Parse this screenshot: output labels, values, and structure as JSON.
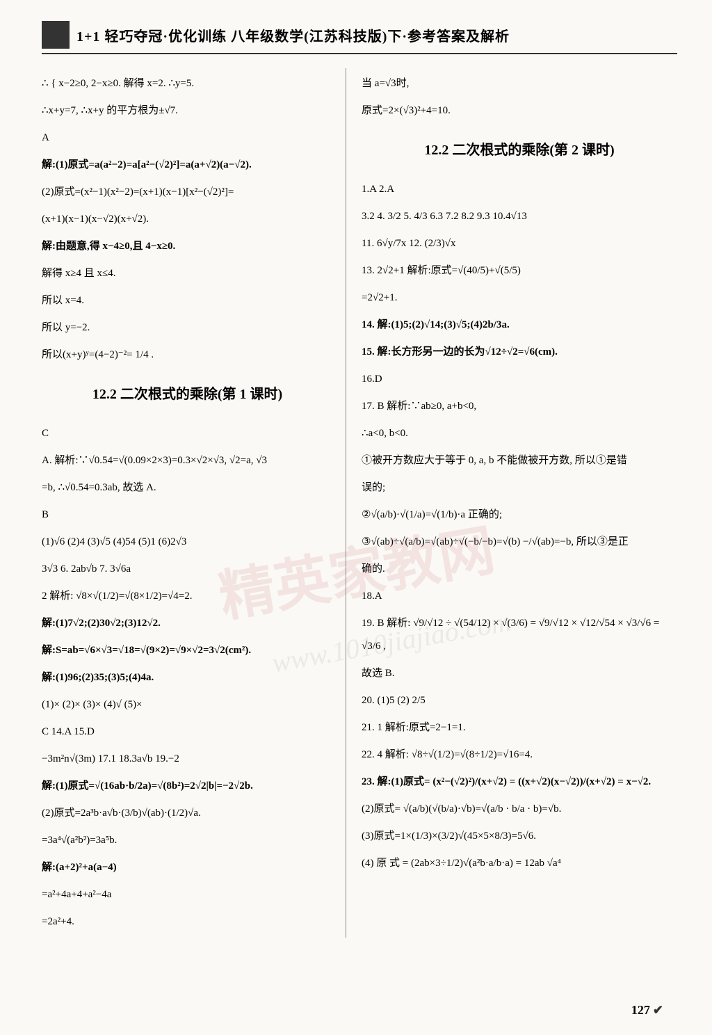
{
  "header": {
    "title": "1+1 轻巧夺冠·优化训练 八年级数学(江苏科技版)下·参考答案及解析"
  },
  "leftCol": {
    "l1": "∴ { x−2≥0, 2−x≥0. 解得 x=2. ∴y=5.",
    "l2": "∴x+y=7, ∴x+y 的平方根为±√7.",
    "l3": "A",
    "l4": "解:(1)原式=a(a²−2)=a[a²−(√2)²]=a(a+√2)(a−√2).",
    "l5": "(2)原式=(x²−1)(x²−2)=(x+1)(x−1)[x²−(√2)²]=",
    "l6": "(x+1)(x−1)(x−√2)(x+√2).",
    "l7": "解:由题意,得 x−4≥0,且 4−x≥0.",
    "l8": "解得 x≥4 且 x≤4.",
    "l9": "所以 x=4.",
    "l10": "所以 y=−2.",
    "l11": "所以(x+y)ʸ=(4−2)⁻²= 1/4 .",
    "sec1": "12.2  二次根式的乘除(第 1 课时)",
    "l12": "C",
    "l13": "A. 解析:∵√0.54=√(0.09×2×3)=0.3×√2×√3, √2=a, √3",
    "l14": "=b, ∴√0.54=0.3ab, 故选 A.",
    "l15": "B",
    "l16": "(1)√6  (2)4  (3)√5  (4)54  (5)1  (6)2√3",
    "l17": "3√3  6. 2ab√b  7. 3√6a",
    "l18": "2  解析: √8×√(1/2)=√(8×1/2)=√4=2.",
    "l19": "解:(1)7√2;(2)30√2;(3)12√2.",
    "l20": "解:S=ab=√6×√3=√18=√(9×2)=√9×√2=3√2(cm²).",
    "l21": "解:(1)96;(2)35;(3)5;(4)4a.",
    "l22": "(1)×  (2)×  (3)×  (4)√  (5)×",
    "l23": "C  14.A  15.D",
    "l24": "−3m²n√(3m)  17.1  18.3a√b  19.−2",
    "l25": "解:(1)原式=√(16ab·b/2a)=√(8b²)=2√2|b|=−2√2b.",
    "l26": "(2)原式=2a³b·a√b·(3/b)√(ab)·(1/2)√a.",
    "l27": "=3a⁴√(a²b²)=3a⁵b.",
    "l28": "解:(a+2)²+a(a−4)",
    "l29": "=a²+4a+4+a²−4a",
    "l30": "=2a²+4."
  },
  "rightCol": {
    "r1": "当 a=√3时,",
    "r2": "原式=2×(√3)²+4=10.",
    "sec2": "12.2  二次根式的乘除(第 2 课时)",
    "r3": "1.A  2.A",
    "r4": "3.2  4. 3/2  5. 4/3  6.3  7.2  8.2  9.3  10.4√13",
    "r5": "11. 6√y/7x  12. (2/3)√x",
    "r6": "13. 2√2+1  解析:原式=√(40/5)+√(5/5)",
    "r7": "  =2√2+1.",
    "r8": "14. 解:(1)5;(2)√14;(3)√5;(4)2b/3a.",
    "r9": "15. 解:长方形另一边的长为√12÷√2=√6(cm).",
    "r10": "16.D",
    "r11": "17. B  解析:∵ab≥0, a+b<0,",
    "r12": "  ∴a<0, b<0.",
    "r13": "①被开方数应大于等于 0, a, b 不能做被开方数, 所以①是错",
    "r14": "  误的;",
    "r15": "②√(a/b)·√(1/a)=√(1/b)·a      正确的;",
    "r16": "③√(ab)÷√(a/b)=√(ab)÷√(−b/−b)=√(b)  −/√(ab)=−b, 所以③是正",
    "r17": "  确的.",
    "r18": "18.A",
    "r19": "19. B  解析: √9/√12 ÷ √(54/12) × √(3/6) = √9/√12 × √12/√54 × √3/√6 = √3/6 ,",
    "r20": "  故选 B.",
    "r21": "20. (1)5  (2) 2/5",
    "r22": "21. 1  解析:原式=2−1=1.",
    "r23": "22. 4  解析: √8÷√(1/2)=√(8÷1/2)=√16=4.",
    "r24": "23. 解:(1)原式= (x²−(√2)²)/(x+√2) = ((x+√2)(x−√2))/(x+√2) = x−√2.",
    "r25": "  (2)原式= √(a/b)(√(b/a)·√b)=√(a/b · b/a · b)=√b.",
    "r26": "  (3)原式=1×(1/3)×(3/2)√(45×5×8/3)=5√6.",
    "r27": "  (4) 原 式 = (2ab×3÷1/2)√(a²b·a/b·a) = 12ab √a⁴"
  },
  "pageNum": "127",
  "watermark1": "精英家教网",
  "watermark2": "www.1010jiajiao.com"
}
